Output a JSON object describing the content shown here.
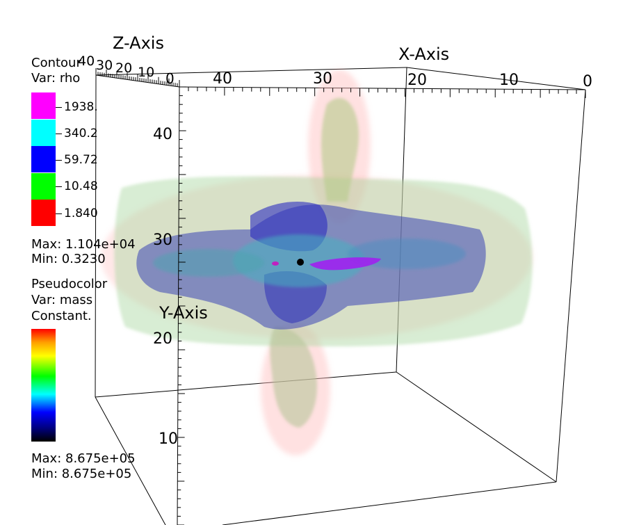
{
  "axes": {
    "z_title": "Z-Axis",
    "x_title": "X-Axis",
    "y_title": "Y-Axis",
    "x_ticks": [
      "40",
      "30",
      "20",
      "10",
      "0"
    ],
    "y_ticks": [
      "40",
      "30",
      "20",
      "10"
    ],
    "z_ticks": [
      "40",
      "30",
      "20",
      "10",
      "0"
    ]
  },
  "contour_legend": {
    "title": "Contour",
    "var": "Var: rho",
    "levels": [
      {
        "label": "1938.",
        "color": "#ff00ff"
      },
      {
        "label": "340.2",
        "color": "#00ffff"
      },
      {
        "label": "59.72",
        "color": "#0000ff"
      },
      {
        "label": "10.48",
        "color": "#00ff00"
      },
      {
        "label": "1.840",
        "color": "#ff0000"
      }
    ],
    "max": "Max:  1.104e+04",
    "min": "Min:  0.3230"
  },
  "pseudocolor_legend": {
    "title": "Pseudocolor",
    "var": "Var: mass",
    "note": "Constant.",
    "max": "Max:  8.675e+05",
    "min": "Min:  8.675e+05"
  }
}
